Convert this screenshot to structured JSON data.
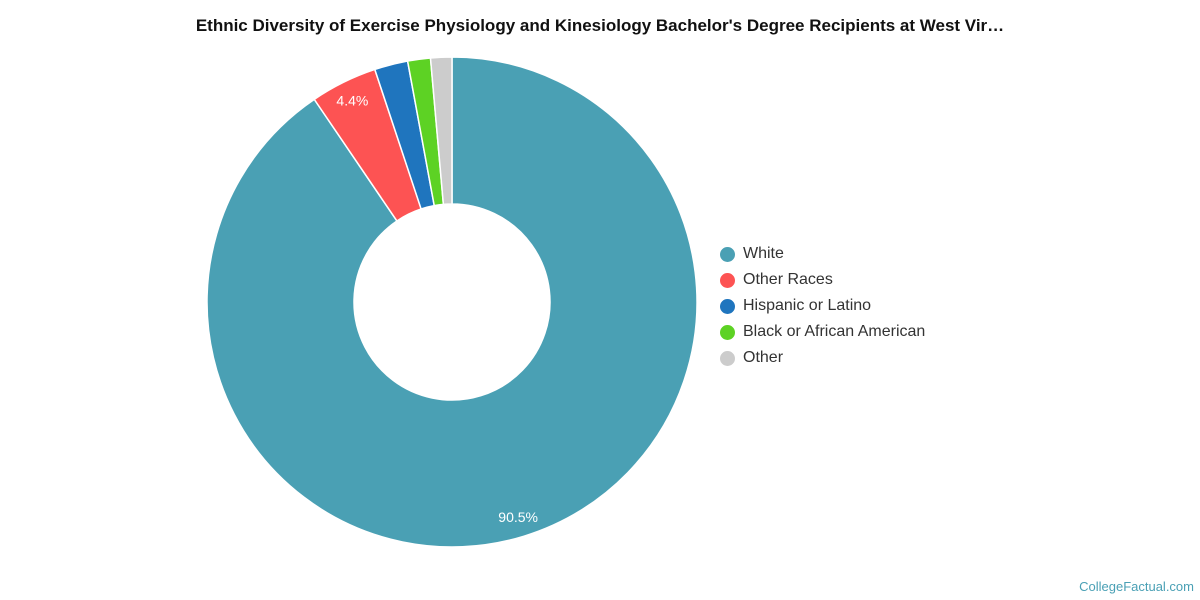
{
  "chart_data": {
    "type": "pie",
    "title": "Ethnic Diversity of Exercise Physiology and Kinesiology Bachelor's Degree Recipients at West Vir…",
    "categories": [
      "White",
      "Other Races",
      "Hispanic or Latino",
      "Black or African American",
      "Other"
    ],
    "values": [
      90.5,
      4.4,
      2.2,
      1.5,
      1.4
    ],
    "colors": [
      "#4aa0b4",
      "#fd5353",
      "#1f75be",
      "#5dd224",
      "#cccccc"
    ],
    "data_labels": [
      "90.5%",
      "4.4%",
      "",
      "",
      ""
    ],
    "donut": true,
    "legend_position": "right"
  },
  "watermark": "CollegeFactual.com"
}
